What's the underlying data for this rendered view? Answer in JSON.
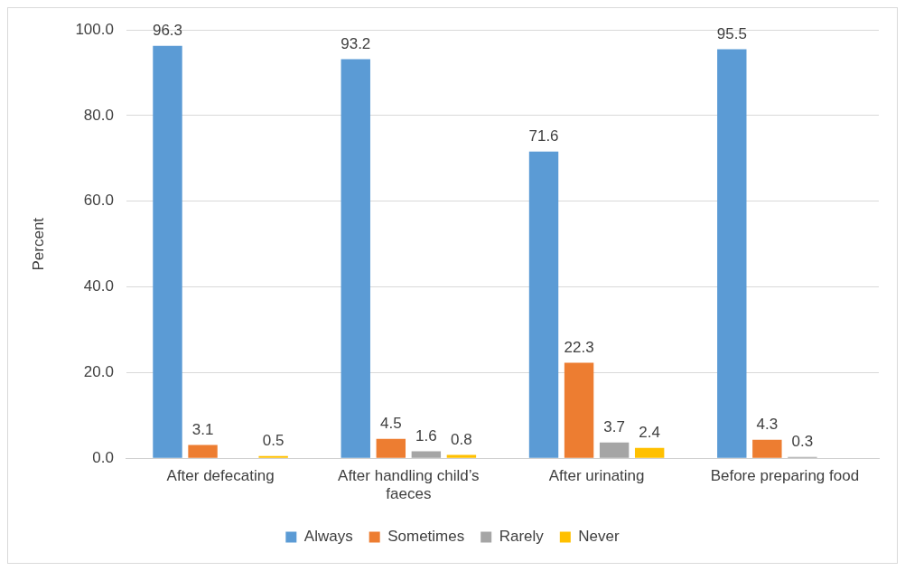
{
  "chart_data": {
    "type": "bar",
    "ylabel": "Percent",
    "categories": [
      "After defecating",
      "After handling child’s faeces",
      "After urinating",
      "Before preparing food"
    ],
    "series": [
      {
        "name": "Always",
        "color": "#5b9bd5",
        "values": [
          96.3,
          93.2,
          71.6,
          95.5
        ]
      },
      {
        "name": "Sometimes",
        "color": "#ed7d31",
        "values": [
          3.1,
          4.5,
          22.3,
          4.3
        ]
      },
      {
        "name": "Rarely",
        "color": "#a5a5a5",
        "values": [
          null,
          1.6,
          3.7,
          0.3
        ]
      },
      {
        "name": "Never",
        "color": "#ffc000",
        "values": [
          0.5,
          0.8,
          2.4,
          null
        ]
      }
    ],
    "ylim": [
      0,
      100
    ],
    "yticks": [
      {
        "value": 0,
        "label": "0.0"
      },
      {
        "value": 20,
        "label": "20.0"
      },
      {
        "value": 40,
        "label": "40.0"
      },
      {
        "value": 60,
        "label": "60.0"
      },
      {
        "value": 80,
        "label": "80.0"
      },
      {
        "value": 100,
        "label": "100.0"
      }
    ],
    "grid": "y",
    "legend": "bottom",
    "data_labels": true
  }
}
